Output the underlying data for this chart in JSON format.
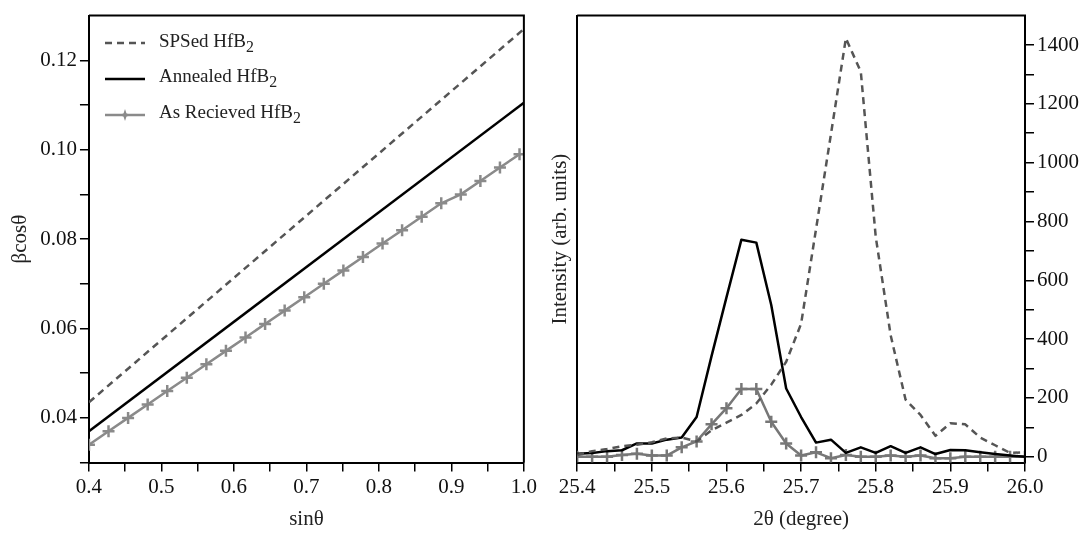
{
  "chart_data": [
    {
      "type": "line",
      "xlabel": "sinθ",
      "ylabel": "βcosθ",
      "xlim": [
        0.4,
        1.0
      ],
      "xticks": [
        0.4,
        {
          "value": 0.45,
          "label": null
        },
        0.5,
        {
          "value": 0.55,
          "label": null
        },
        0.6,
        {
          "value": 0.65,
          "label": null
        },
        0.7,
        {
          "value": 0.75,
          "label": null
        },
        0.8,
        {
          "value": 0.85,
          "label": null
        },
        0.9,
        {
          "value": 0.95,
          "label": null
        },
        {
          "value": 1.0,
          "label": "1.0"
        }
      ],
      "ylim": [
        0.03,
        0.13
      ],
      "yticks": [
        {
          "value": 0.03,
          "label": null
        },
        0.04,
        {
          "value": 0.05,
          "label": null
        },
        0.06,
        {
          "value": 0.07,
          "label": null
        },
        0.08,
        {
          "value": 0.09,
          "label": null
        },
        {
          "value": 0.1,
          "label": "0.10"
        },
        {
          "value": 0.11,
          "label": null
        },
        0.12
      ],
      "legend": "top left",
      "grid": false,
      "series": [
        {
          "name": "SPSed HfB$_{2}$",
          "color": "#555555",
          "line_style": "dashed",
          "marker": "none",
          "x": [
            0.4,
            1.0
          ],
          "values": [
            0.0435,
            0.127
          ]
        },
        {
          "name": "Annealed HfB$_{2}$",
          "color": "#000000",
          "line_style": "solid",
          "marker": "none",
          "x": [
            0.4,
            1.0
          ],
          "values": [
            0.037,
            0.1105
          ]
        },
        {
          "name": "As Recieved HfB$_{2}$",
          "color": "#8a8a8a",
          "line_style": "solid",
          "marker": "cross",
          "x": [
            0.4,
            0.427,
            0.454,
            0.481,
            0.508,
            0.535,
            0.562,
            0.589,
            0.616,
            0.643,
            0.67,
            0.697,
            0.724,
            0.751,
            0.778,
            0.805,
            0.832,
            0.859,
            0.886,
            0.913,
            0.94,
            0.967,
            0.994
          ],
          "values": [
            0.034,
            0.037,
            0.04,
            0.043,
            0.046,
            0.049,
            0.052,
            0.055,
            0.058,
            0.061,
            0.064,
            0.067,
            0.07,
            0.073,
            0.076,
            0.079,
            0.082,
            0.085,
            0.088,
            0.09,
            0.093,
            0.096,
            0.099
          ]
        }
      ]
    },
    {
      "type": "line",
      "xlabel": "2θ (degree)",
      "ylabel": "Intensity (arb. units)",
      "xlim": [
        25.4,
        26.0
      ],
      "xticks": [
        25.4,
        {
          "value": 25.45,
          "label": null
        },
        25.5,
        {
          "value": 25.55,
          "label": null
        },
        25.6,
        {
          "value": 25.65,
          "label": null
        },
        25.7,
        {
          "value": 25.75,
          "label": null
        },
        25.8,
        {
          "value": 25.85,
          "label": null
        },
        25.9,
        {
          "value": 25.95,
          "label": null
        },
        {
          "value": 26.0,
          "label": "26.0"
        }
      ],
      "y2lim": [
        -20,
        1500
      ],
      "y2ticks": [
        0,
        {
          "value": 100,
          "label": null
        },
        200,
        {
          "value": 300,
          "label": null
        },
        400,
        {
          "value": 500,
          "label": null
        },
        600,
        {
          "value": 700,
          "label": null
        },
        800,
        {
          "value": 900,
          "label": null
        },
        1000,
        {
          "value": 1100,
          "label": null
        },
        1200,
        {
          "value": 1300,
          "label": null
        },
        1400
      ],
      "grid": false,
      "x": [
        25.4,
        25.42,
        25.44,
        25.46,
        25.48,
        25.5,
        25.52,
        25.54,
        25.56,
        25.58,
        25.6,
        25.62,
        25.64,
        25.66,
        25.68,
        25.7,
        25.72,
        25.74,
        25.76,
        25.78,
        25.8,
        25.82,
        25.84,
        25.86,
        25.88,
        25.9,
        25.92,
        25.94,
        25.96,
        25.98,
        26.0
      ],
      "series": [
        {
          "color": "#555555",
          "line_style": "dashed",
          "marker": "none",
          "axis": "y2",
          "values": [
            6,
            19,
            26,
            36,
            41,
            49,
            62,
            65,
            52,
            90,
            116,
            142,
            181,
            245,
            323,
            452,
            774,
            1097,
            1423,
            1309,
            748,
            413,
            194,
            142,
            71,
            114,
            110,
            65,
            39,
            13,
            15
          ]
        },
        {
          "color": "#000000",
          "line_style": "solid",
          "marker": "none",
          "axis": "y2",
          "values": [
            10,
            13,
            19,
            22,
            45,
            45,
            58,
            65,
            135,
            342,
            542,
            738,
            728,
            516,
            232,
            135,
            48,
            58,
            13,
            32,
            13,
            36,
            13,
            32,
            9,
            23,
            22,
            15,
            9,
            4,
            0
          ]
        },
        {
          "color": "#777777",
          "line_style": "solid",
          "marker": "cross",
          "axis": "y2",
          "values": [
            0,
            0,
            0,
            6,
            10,
            4,
            4,
            32,
            52,
            110,
            165,
            230,
            230,
            119,
            45,
            4,
            15,
            -5,
            6,
            0,
            0,
            4,
            0,
            4,
            -5,
            -5,
            0,
            0,
            0,
            0,
            0
          ]
        }
      ]
    }
  ]
}
